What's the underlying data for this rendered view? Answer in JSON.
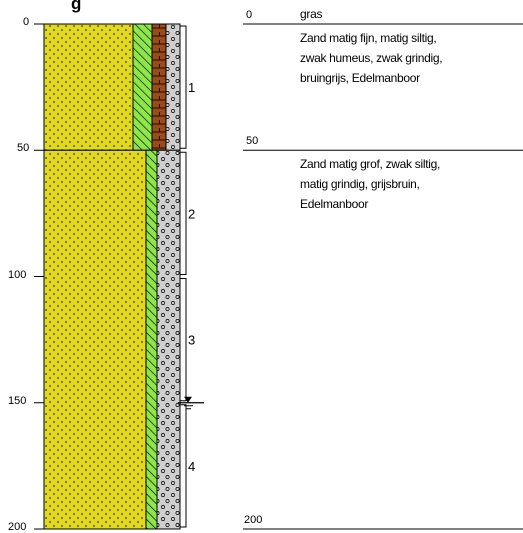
{
  "header": {
    "title_fragment": "g"
  },
  "depth_axis": {
    "ticks": [
      {
        "value": 0,
        "label": "0"
      },
      {
        "value": 50,
        "label": "50"
      },
      {
        "value": 100,
        "label": "100"
      },
      {
        "value": 150,
        "label": "150"
      },
      {
        "value": 200,
        "label": "200"
      }
    ],
    "range": [
      0,
      200
    ]
  },
  "layers": [
    {
      "top": 0,
      "bottom": 50,
      "depth_label": "0",
      "top_label": "gras",
      "description": [
        "Zand matig fijn, matig siltig,",
        "zwak humeus, zwak grindig,",
        "bruingrijs, Edelmanboor"
      ]
    },
    {
      "top": 50,
      "bottom": 200,
      "depth_label": "50",
      "description": [
        "Zand matig grof, zwak siltig,",
        "matig grindig, grijsbruin,",
        "Edelmanboor"
      ]
    }
  ],
  "bottom_label": "200",
  "samples": [
    {
      "label": "1",
      "top": 0,
      "bottom": 50
    },
    {
      "label": "2",
      "top": 50,
      "bottom": 100
    },
    {
      "label": "3",
      "top": 100,
      "bottom": 150
    },
    {
      "label": "4",
      "top": 150,
      "bottom": 200
    }
  ],
  "groundwater_level": 150,
  "colors": {
    "sand": "#e2d81c",
    "silt": "#8ee64a",
    "humus": "#9b4a1c",
    "gravel": "#cfcfcf",
    "line": "#000000"
  }
}
